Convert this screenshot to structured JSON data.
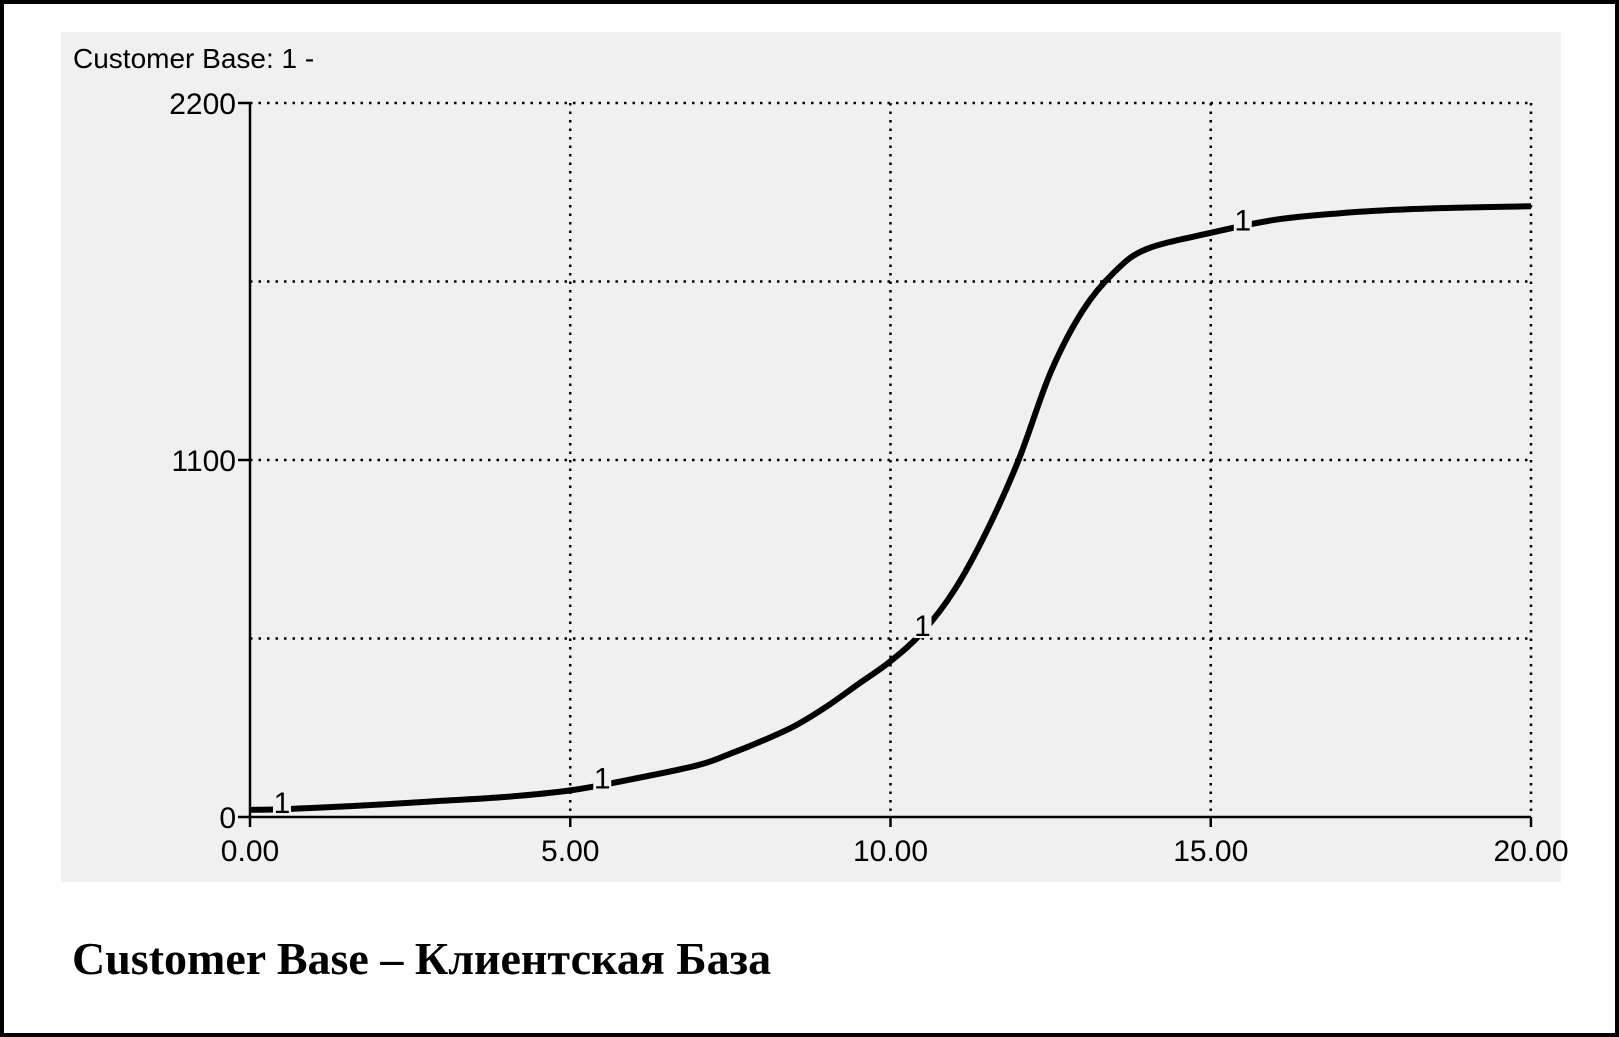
{
  "caption": "Customer Base – Клиентская База",
  "chart_data": {
    "type": "line",
    "legend_text": "Customer Base: 1 -",
    "xlim": [
      0,
      20
    ],
    "ylim": [
      0,
      2200
    ],
    "x_ticks": [
      0,
      5,
      10,
      15,
      20
    ],
    "x_tick_labels": [
      "0.00",
      "5.00",
      "10.00",
      "15.00",
      "20.00"
    ],
    "y_tick_labels": [
      {
        "value": 2200,
        "label": "2200"
      },
      {
        "value": 1100,
        "label": "1100"
      },
      {
        "value": 0,
        "label": "0"
      }
    ],
    "y_gridlines": [
      0,
      550,
      1100,
      1650,
      2200
    ],
    "grid": true,
    "grid_style": "dotted",
    "line_color": "#000000",
    "background_color": "#f0f0f0",
    "series": [
      {
        "marker_label": "1",
        "marker_x": [
          0.5,
          5.5,
          10.5,
          15.5
        ],
        "x": [
          0,
          0.5,
          1,
          2,
          3,
          4,
          5,
          6,
          7,
          7.5,
          8,
          8.5,
          9,
          9.5,
          10,
          10.5,
          11,
          11.5,
          12,
          12.5,
          13,
          13.5,
          14,
          15,
          16,
          17,
          18,
          19,
          20
        ],
        "y": [
          22,
          24,
          28,
          38,
          50,
          62,
          82,
          118,
          160,
          195,
          235,
          280,
          340,
          410,
          480,
          570,
          700,
          880,
          1100,
          1370,
          1560,
          1680,
          1750,
          1800,
          1840,
          1860,
          1872,
          1878,
          1882
        ]
      }
    ]
  }
}
